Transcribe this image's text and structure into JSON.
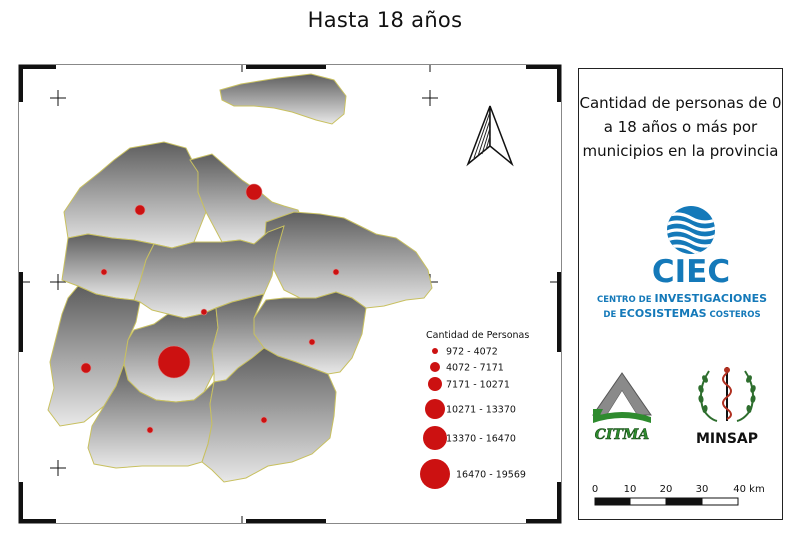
{
  "title": "Hasta 18 años",
  "panel": {
    "description": "Cantidad de personas de 0 a 18 años o más por municipios en la provincia"
  },
  "legend": {
    "title": "Cantidad de Personas",
    "classes": [
      {
        "label": "972 - 4072"
      },
      {
        "label": "4072 - 7171"
      },
      {
        "label": "7171 - 10271"
      },
      {
        "label": "10271 - 13370"
      },
      {
        "label": "13370 - 16470"
      },
      {
        "label": "16470 - 19569"
      }
    ],
    "symbol_color": "#cc1111"
  },
  "logos": {
    "ciec": {
      "acronym": "CIEC",
      "line1_prefix": "CENTRO DE ",
      "line1_main": "INVESTIGACIONES",
      "line2_prefix": "DE ",
      "line2_main": "ECOSISTEMAS",
      "line2_suffix": " COSTEROS"
    },
    "citma": {
      "name": "CITMA"
    },
    "minsap": {
      "name": "MINSAP"
    }
  },
  "scale": {
    "ticks": [
      "0",
      "10",
      "20",
      "30",
      "40 km"
    ]
  },
  "colors": {
    "municipality_border": "#c8c060",
    "symbol": "#cc1111",
    "ciec_blue": "#1479b9"
  }
}
